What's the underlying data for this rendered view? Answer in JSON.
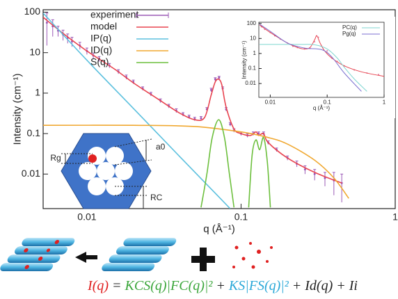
{
  "chart_data": [
    {
      "type": "line",
      "xlabel": "q (Å⁻¹)",
      "ylabel": "Intensity (cm⁻¹)",
      "xscale": "log",
      "yscale": "log",
      "xlim": [
        0.0052,
        1
      ],
      "ylim": [
        0.0014,
        115
      ],
      "xticks": [
        0.01,
        0.1,
        1
      ],
      "yticks": [
        0.01,
        0.1,
        1,
        10,
        100
      ],
      "legend": "top-left",
      "series": [
        {
          "name": "experiment",
          "color": "#9b59b6",
          "mode": "errorbar",
          "x": [
            0.0055,
            0.006,
            0.0065,
            0.007,
            0.0075,
            0.008,
            0.009,
            0.01,
            0.011,
            0.012,
            0.014,
            0.016,
            0.018,
            0.02,
            0.023,
            0.026,
            0.03,
            0.034,
            0.038,
            0.042,
            0.046,
            0.05,
            0.055,
            0.06,
            0.064,
            0.068,
            0.072,
            0.076,
            0.08,
            0.085,
            0.09,
            0.1,
            0.11,
            0.12,
            0.13,
            0.14,
            0.15,
            0.17,
            0.2,
            0.23,
            0.26,
            0.3,
            0.35,
            0.4,
            0.45
          ],
          "values": [
            55,
            45,
            35,
            28,
            23,
            19,
            15,
            11,
            8.5,
            7,
            4.8,
            3.4,
            2.5,
            1.9,
            1.3,
            0.95,
            0.65,
            0.48,
            0.37,
            0.3,
            0.26,
            0.23,
            0.24,
            0.4,
            1.2,
            2.2,
            2.4,
            1.3,
            0.4,
            0.17,
            0.12,
            0.1,
            0.09,
            0.1,
            0.1,
            0.1,
            0.06,
            0.04,
            0.025,
            0.018,
            0.013,
            0.01,
            0.008,
            0.007,
            0.006
          ],
          "errors": [
            40,
            20,
            10,
            8,
            6,
            5,
            3,
            2,
            1.3,
            1,
            0.6,
            0.4,
            0.3,
            0.2,
            0.13,
            0.1,
            0.07,
            0.05,
            0.04,
            0.03,
            0.026,
            0.023,
            0.024,
            0.04,
            0.12,
            0.2,
            0.2,
            0.13,
            0.04,
            0.017,
            0.012,
            0.01,
            0.009,
            0.01,
            0.01,
            0.01,
            0.006,
            0.004,
            0.003,
            0.003,
            0.003,
            0.003,
            0.003,
            0.004,
            0.004
          ]
        },
        {
          "name": "model",
          "color": "#e8434f",
          "mode": "line",
          "x": [
            0.0052,
            0.007,
            0.01,
            0.015,
            0.02,
            0.03,
            0.04,
            0.05,
            0.058,
            0.064,
            0.068,
            0.0716,
            0.075,
            0.08,
            0.09,
            0.1,
            0.115,
            0.125,
            0.13,
            0.14,
            0.15,
            0.2,
            0.3,
            0.45
          ],
          "values": [
            75,
            30,
            11,
            4,
            1.8,
            0.65,
            0.32,
            0.22,
            0.25,
            0.9,
            1.9,
            2.2,
            1.6,
            0.45,
            0.13,
            0.1,
            0.09,
            0.11,
            0.09,
            0.1,
            0.06,
            0.025,
            0.011,
            0.006
          ]
        },
        {
          "name": "IP(q)",
          "color": "#5bc0de",
          "mode": "line",
          "x": [
            0.0052,
            0.01,
            0.02,
            0.04,
            0.06,
            0.085
          ],
          "values": [
            95,
            6.5,
            0.42,
            0.027,
            0.0055,
            0.0014
          ]
        },
        {
          "name": "ID(q)",
          "color": "#f0a830",
          "mode": "line",
          "x": [
            0.0052,
            0.02,
            0.05,
            0.1,
            0.15,
            0.2,
            0.3,
            0.4,
            0.5
          ],
          "values": [
            0.16,
            0.16,
            0.15,
            0.11,
            0.08,
            0.055,
            0.022,
            0.008,
            0.0025
          ]
        },
        {
          "name": "S(q)",
          "color": "#6cbf3c",
          "mode": "line",
          "x": [
            0.055,
            0.06,
            0.065,
            0.0716,
            0.078,
            0.084,
            0.09,
            0.1,
            0.112,
            0.118,
            0.125,
            0.132,
            0.14,
            0.148,
            0.155
          ],
          "values": [
            0.0015,
            0.01,
            0.08,
            0.22,
            0.08,
            0.01,
            0.0015,
            null,
            0.0015,
            0.03,
            0.07,
            0.04,
            0.08,
            0.02,
            0.0015
          ]
        }
      ]
    },
    {
      "type": "line",
      "xlabel": "q (Å⁻¹)",
      "ylabel": "Intensity (cm⁻¹)",
      "xscale": "log",
      "yscale": "log",
      "xlim": [
        0.0063,
        1
      ],
      "ylim": [
        0.0012,
        120
      ],
      "xticks": [
        0.01,
        0.1,
        1
      ],
      "yticks": [
        0.01,
        0.1,
        1,
        10,
        100
      ],
      "legend": "top-right",
      "series": [
        {
          "color": "#e07a9a",
          "mode": "points",
          "x": [
            0.007,
            0.008,
            0.01,
            0.012,
            0.015,
            0.02,
            0.025,
            0.03,
            0.04,
            0.05,
            0.06,
            0.065,
            0.07,
            0.08,
            0.1,
            0.12,
            0.15,
            0.2,
            0.3,
            0.5,
            0.8
          ],
          "values": [
            60,
            40,
            25,
            15,
            9,
            5,
            3,
            2.5,
            2,
            2.2,
            6,
            15,
            12,
            3,
            1.5,
            0.5,
            0.3,
            0.15,
            0.08,
            0.05,
            0.04
          ]
        },
        {
          "color": "#e8434f",
          "mode": "line",
          "x": [
            0.0065,
            0.01,
            0.02,
            0.03,
            0.04,
            0.05,
            0.06,
            0.066,
            0.075,
            0.09,
            0.12,
            0.2,
            0.4,
            1
          ],
          "values": [
            80,
            25,
            5,
            2.5,
            2,
            2.5,
            8,
            15,
            5,
            1.5,
            0.5,
            0.15,
            0.06,
            0.03
          ]
        },
        {
          "name": "PC(q)",
          "color": "#7fd6d0",
          "mode": "line",
          "x": [
            0.0065,
            0.03,
            0.06,
            0.1,
            0.15,
            0.2,
            0.3,
            0.5
          ],
          "values": [
            4,
            4,
            3.8,
            2,
            0.5,
            0.12,
            0.02,
            0.003
          ]
        },
        {
          "name": "Pg(q)",
          "color": "#7b6fd0",
          "mode": "line",
          "x": [
            0.0065,
            0.01,
            0.02,
            0.04,
            0.08,
            0.12,
            0.2,
            0.4
          ],
          "values": [
            90,
            30,
            5,
            2.3,
            1.8,
            0.6,
            0.05,
            0.003
          ]
        }
      ]
    }
  ],
  "diagram": {
    "labels": [
      "Rg",
      "a0",
      "RC"
    ]
  },
  "equation": {
    "parts": [
      "I(q)",
      " = ",
      "KCS(q)|FC(q)|²",
      " + ",
      "KS|FS(q)|²",
      " + Id(q) + Ii"
    ]
  }
}
